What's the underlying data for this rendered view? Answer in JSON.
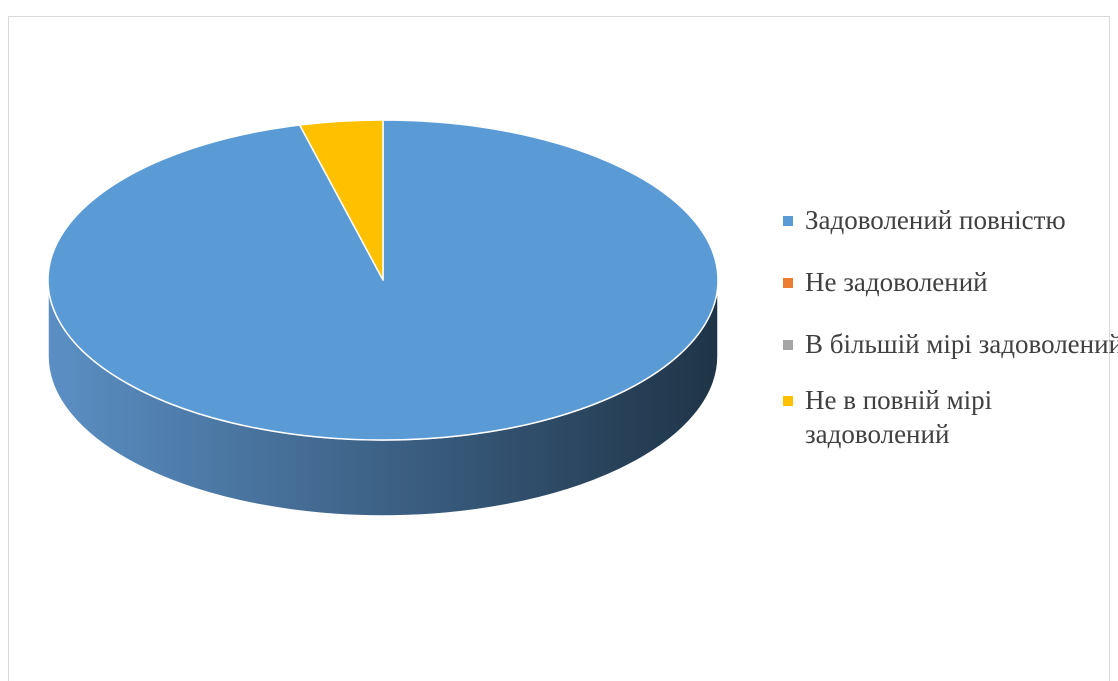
{
  "heading": "",
  "chart_data": {
    "type": "pie",
    "title": "",
    "categories": [
      "Задоволений повністю",
      "Не задоволений",
      "В більшій мірі задоволений",
      "Не в повній мірі задоволений"
    ],
    "values": [
      96,
      0,
      0,
      4
    ],
    "unit": "percent",
    "style": "3d",
    "legend_position": "right",
    "colors": [
      "#5b9bd5",
      "#ed7d31",
      "#a5a5a5",
      "#ffc000"
    ],
    "side_colors": [
      "#5b8fc4",
      "#1f3447"
    ]
  }
}
